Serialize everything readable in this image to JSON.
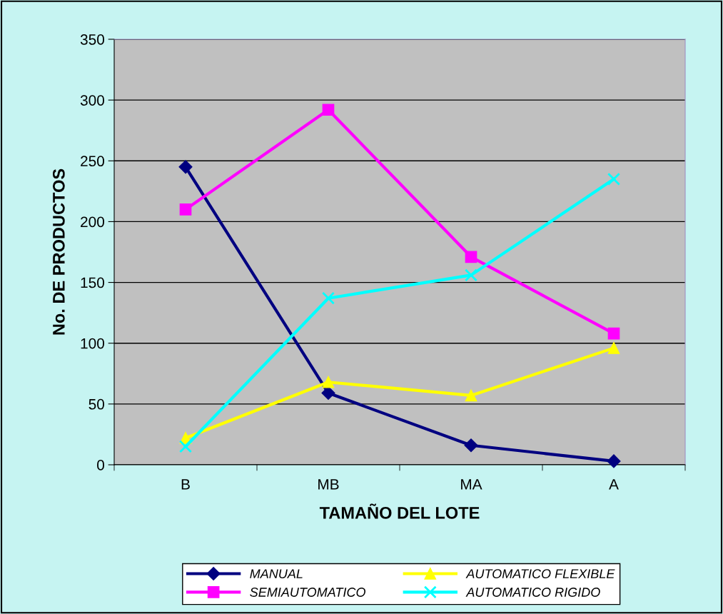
{
  "chart_data": {
    "type": "line",
    "xlabel": "TAMAÑO DEL LOTE",
    "ylabel": "No. DE PRODUCTOS",
    "categories": [
      "B",
      "MB",
      "MA",
      "A"
    ],
    "series": [
      {
        "name": "MANUAL",
        "color": "#000080",
        "marker": "diamond",
        "values": [
          245,
          59,
          16,
          3
        ]
      },
      {
        "name": "SEMIAUTOMATICO",
        "color": "#ff00ff",
        "marker": "square",
        "values": [
          210,
          292,
          171,
          108
        ]
      },
      {
        "name": "AUTOMATICO FLEXIBLE",
        "color": "#ffff00",
        "marker": "triangle",
        "values": [
          22,
          68,
          57,
          96
        ]
      },
      {
        "name": "AUTOMATICO RIGIDO",
        "color": "#00ffff",
        "marker": "cross",
        "values": [
          15,
          137,
          156,
          235
        ]
      }
    ],
    "ylim": [
      0,
      350
    ],
    "yticks": [
      0,
      50,
      100,
      150,
      200,
      250,
      300,
      350
    ],
    "grid": "y",
    "legend": "bottom",
    "line_style": "solid"
  }
}
